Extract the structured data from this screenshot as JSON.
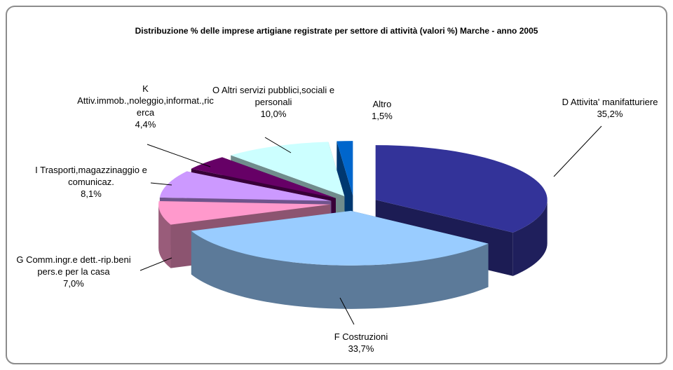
{
  "chart_data": {
    "type": "pie3d",
    "title": "Distribuzione % delle imprese artigiane registrate per settore di attività (valori %) Marche - anno 2005",
    "categories": [
      "D Attivita' manifatturiere",
      "F Costruzioni",
      "G Comm.ingr.e dett.-rip.beni pers.e per la casa",
      "I Trasporti,magazzinaggio e comunicaz.",
      "K Attiv.immob.,noleggio,informat.,ricerca",
      "O Altri servizi pubblici,sociali e personali",
      "Altro"
    ],
    "values": [
      35.2,
      33.7,
      7.0,
      8.1,
      4.4,
      10.0,
      1.5
    ],
    "value_labels": [
      "35,2%",
      "33,7%",
      "7,0%",
      "8,1%",
      "4,4%",
      "10,0%",
      "1,5%"
    ],
    "colors": [
      "#333399",
      "#99ccff",
      "#ff99cc",
      "#cc99ff",
      "#660066",
      "#ccffff",
      "#0066cc"
    ]
  }
}
